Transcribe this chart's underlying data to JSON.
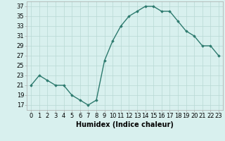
{
  "x": [
    0,
    1,
    2,
    3,
    4,
    5,
    6,
    7,
    8,
    9,
    10,
    11,
    12,
    13,
    14,
    15,
    16,
    17,
    18,
    19,
    20,
    21,
    22,
    23
  ],
  "y": [
    21,
    23,
    22,
    21,
    21,
    19,
    18,
    17,
    18,
    26,
    30,
    33,
    35,
    36,
    37,
    37,
    36,
    36,
    34,
    32,
    31,
    29,
    29,
    27
  ],
  "line_color": "#2d7a6e",
  "marker": "D",
  "marker_size": 1.8,
  "line_width": 1.0,
  "bg_color": "#d8f0ee",
  "grid_color": "#b8d8d4",
  "xlabel": "Humidex (Indice chaleur)",
  "xlabel_fontsize": 7,
  "ylabel_ticks": [
    17,
    19,
    21,
    23,
    25,
    27,
    29,
    31,
    33,
    35,
    37
  ],
  "ylim": [
    16,
    38
  ],
  "xlim": [
    -0.5,
    23.5
  ],
  "tick_fontsize": 6,
  "linestyle": "-"
}
